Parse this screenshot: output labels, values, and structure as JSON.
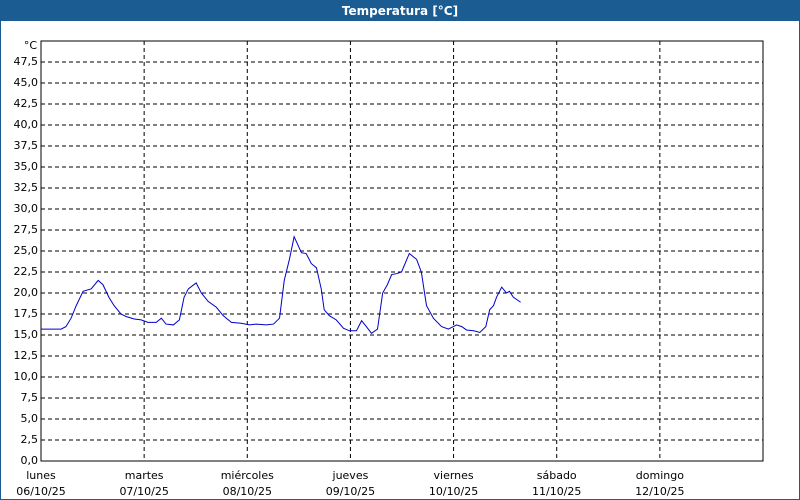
{
  "chart_data": {
    "type": "line",
    "title": "Temperatura [°C]",
    "ylabel": "°C",
    "xlim": [
      0,
      168
    ],
    "ylim": [
      0,
      50
    ],
    "grid": true,
    "xticks": [
      {
        "value": 0,
        "label": "06/10/25",
        "day": "lunes"
      },
      {
        "value": 24,
        "label": "07/10/25",
        "day": "martes"
      },
      {
        "value": 48,
        "label": "08/10/25",
        "day": "miércoles"
      },
      {
        "value": 72,
        "label": "09/10/25",
        "day": "jueves"
      },
      {
        "value": 96,
        "label": "10/10/25",
        "day": "viernes"
      },
      {
        "value": 120,
        "label": "11/10/25",
        "day": "sábado"
      },
      {
        "value": 144,
        "label": "12/10/25",
        "day": "domingo"
      }
    ],
    "yticks": [
      {
        "value": 0,
        "label": "0,0"
      },
      {
        "value": 2.5,
        "label": "2,5"
      },
      {
        "value": 5,
        "label": "5,0"
      },
      {
        "value": 7.5,
        "label": "7,5"
      },
      {
        "value": 10,
        "label": "10,0"
      },
      {
        "value": 12.5,
        "label": "12,5"
      },
      {
        "value": 15,
        "label": "15,0"
      },
      {
        "value": 17.5,
        "label": "17,5"
      },
      {
        "value": 20,
        "label": "20,0"
      },
      {
        "value": 22.5,
        "label": "22,5"
      },
      {
        "value": 25,
        "label": "25,0"
      },
      {
        "value": 27.5,
        "label": "27,5"
      },
      {
        "value": 30,
        "label": "30,0"
      },
      {
        "value": 32.5,
        "label": "32,5"
      },
      {
        "value": 35,
        "label": "35,0"
      },
      {
        "value": 37.5,
        "label": "37,5"
      },
      {
        "value": 40,
        "label": "40,0"
      },
      {
        "value": 42.5,
        "label": "42,5"
      },
      {
        "value": 45,
        "label": "45,0"
      },
      {
        "value": 47.5,
        "label": "47,5"
      }
    ],
    "x": [
      0,
      4.7,
      5.8,
      7,
      8.2,
      9.8,
      11.7,
      13.3,
      14.4,
      15.8,
      17,
      18.6,
      19.8,
      21.7,
      23.3,
      24.9,
      26.8,
      28,
      29.1,
      30.8,
      32.2,
      33.3,
      34.3,
      36.1,
      37.3,
      38.9,
      40.8,
      42.4,
      44.3,
      46.6,
      48.5,
      50.1,
      52.4,
      54.1,
      55.5,
      56.6,
      57.8,
      58.9,
      60.6,
      61.7,
      62.9,
      64.1,
      65.2,
      65.9,
      67.1,
      68.7,
      70.4,
      71.8,
      73.4,
      74.6,
      75.7,
      76.9,
      78.3,
      79.5,
      80.6,
      81.6,
      82.7,
      83.9,
      85.7,
      87.4,
      88.5,
      89.7,
      91.3,
      93.2,
      94.8,
      96.7,
      97.9,
      99,
      100.7,
      102.1,
      103.5,
      104.4,
      105.3,
      106,
      107.2,
      108.3,
      109,
      109.9,
      111.6
    ],
    "series": [
      {
        "name": "Temperatura",
        "color": "#0000c8",
        "values": [
          15.7,
          15.7,
          16.0,
          17.0,
          18.5,
          20.2,
          20.5,
          21.5,
          21.0,
          19.5,
          18.5,
          17.5,
          17.2,
          16.9,
          16.8,
          16.5,
          16.5,
          17.0,
          16.3,
          16.2,
          16.8,
          19.5,
          20.5,
          21.2,
          20.0,
          19.0,
          18.3,
          17.3,
          16.5,
          16.4,
          16.2,
          16.3,
          16.2,
          16.3,
          17.0,
          21.5,
          24.0,
          26.7,
          24.8,
          24.7,
          23.5,
          23.0,
          20.5,
          18.0,
          17.3,
          16.8,
          15.8,
          15.5,
          15.5,
          16.7,
          16.0,
          15.2,
          15.7,
          20.0,
          21.0,
          22.2,
          22.3,
          22.5,
          24.7,
          24.0,
          22.5,
          18.5,
          17.0,
          16.0,
          15.7,
          16.2,
          16.0,
          15.6,
          15.5,
          15.3,
          16.0,
          18.0,
          18.5,
          19.5,
          20.7,
          20.0,
          20.2,
          19.5,
          18.9
        ]
      }
    ]
  }
}
